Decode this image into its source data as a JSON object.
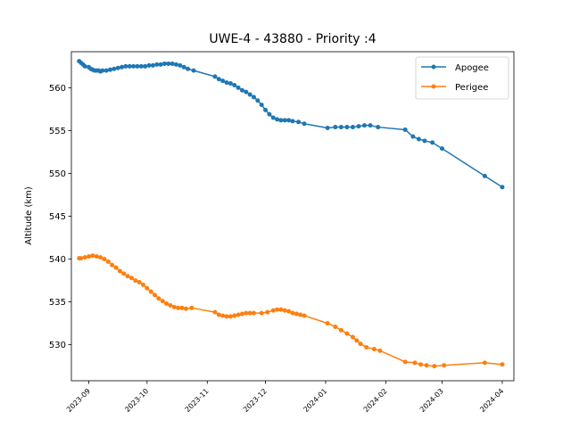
{
  "chart_data": {
    "type": "line",
    "title": "UWE-4 - 43880 - Priority :4",
    "xlabel": "",
    "ylabel": "Altitude (km)",
    "x_ticks": [
      "2023-09",
      "2023-10",
      "2023-11",
      "2023-12",
      "2024-01",
      "2024-02",
      "2024-03",
      "2024-04"
    ],
    "y_ticks": [
      530,
      535,
      540,
      545,
      550,
      555,
      560
    ],
    "ylim": [
      525.8,
      564.2
    ],
    "xlim": [
      "2023-08-23",
      "2024-04-07"
    ],
    "legend_position": "upper right",
    "grid": false,
    "series": [
      {
        "name": "Apogee",
        "color": "#1f77b4",
        "marker": "circle",
        "points": [
          [
            "2023-08-27",
            563.1
          ],
          [
            "2023-08-28",
            562.9
          ],
          [
            "2023-08-29",
            562.7
          ],
          [
            "2023-08-30",
            562.5
          ],
          [
            "2023-09-01",
            562.4
          ],
          [
            "2023-09-02",
            562.2
          ],
          [
            "2023-09-03",
            562.1
          ],
          [
            "2023-09-04",
            562.0
          ],
          [
            "2023-09-05",
            562.0
          ],
          [
            "2023-09-06",
            562.0
          ],
          [
            "2023-09-07",
            561.9
          ],
          [
            "2023-09-08",
            562.0
          ],
          [
            "2023-09-10",
            562.0
          ],
          [
            "2023-09-12",
            562.1
          ],
          [
            "2023-09-14",
            562.2
          ],
          [
            "2023-09-16",
            562.3
          ],
          [
            "2023-09-18",
            562.4
          ],
          [
            "2023-09-20",
            562.5
          ],
          [
            "2023-09-22",
            562.5
          ],
          [
            "2023-09-24",
            562.5
          ],
          [
            "2023-09-26",
            562.5
          ],
          [
            "2023-09-28",
            562.5
          ],
          [
            "2023-09-30",
            562.5
          ],
          [
            "2023-10-02",
            562.6
          ],
          [
            "2023-10-04",
            562.6
          ],
          [
            "2023-10-06",
            562.7
          ],
          [
            "2023-10-08",
            562.7
          ],
          [
            "2023-10-10",
            562.8
          ],
          [
            "2023-10-12",
            562.8
          ],
          [
            "2023-10-14",
            562.8
          ],
          [
            "2023-10-16",
            562.7
          ],
          [
            "2023-10-18",
            562.6
          ],
          [
            "2023-10-20",
            562.4
          ],
          [
            "2023-10-22",
            562.2
          ],
          [
            "2023-10-25",
            562.0
          ],
          [
            "2023-11-05",
            561.3
          ],
          [
            "2023-11-07",
            561.0
          ],
          [
            "2023-11-09",
            560.8
          ],
          [
            "2023-11-11",
            560.6
          ],
          [
            "2023-11-13",
            560.5
          ],
          [
            "2023-11-15",
            560.3
          ],
          [
            "2023-11-17",
            560.0
          ],
          [
            "2023-11-19",
            559.7
          ],
          [
            "2023-11-21",
            559.5
          ],
          [
            "2023-11-23",
            559.2
          ],
          [
            "2023-11-25",
            558.9
          ],
          [
            "2023-11-27",
            558.5
          ],
          [
            "2023-11-29",
            558.0
          ],
          [
            "2023-12-01",
            557.4
          ],
          [
            "2023-12-03",
            556.9
          ],
          [
            "2023-12-05",
            556.5
          ],
          [
            "2023-12-07",
            556.3
          ],
          [
            "2023-12-09",
            556.2
          ],
          [
            "2023-12-11",
            556.2
          ],
          [
            "2023-12-13",
            556.2
          ],
          [
            "2023-12-15",
            556.1
          ],
          [
            "2023-12-18",
            556.0
          ],
          [
            "2023-12-21",
            555.8
          ],
          [
            "2024-01-02",
            555.3
          ],
          [
            "2024-01-06",
            555.4
          ],
          [
            "2024-01-09",
            555.4
          ],
          [
            "2024-01-12",
            555.4
          ],
          [
            "2024-01-15",
            555.4
          ],
          [
            "2024-01-18",
            555.5
          ],
          [
            "2024-01-21",
            555.6
          ],
          [
            "2024-01-24",
            555.6
          ],
          [
            "2024-01-28",
            555.4
          ],
          [
            "2024-02-11",
            555.1
          ],
          [
            "2024-02-15",
            554.3
          ],
          [
            "2024-02-18",
            554.0
          ],
          [
            "2024-02-21",
            553.8
          ],
          [
            "2024-02-25",
            553.6
          ],
          [
            "2024-03-01",
            552.9
          ],
          [
            "2024-03-23",
            549.7
          ],
          [
            "2024-04-01",
            548.4
          ]
        ]
      },
      {
        "name": "Perigee",
        "color": "#ff7f0e",
        "marker": "circle",
        "points": [
          [
            "2023-08-27",
            540.1
          ],
          [
            "2023-08-28",
            540.1
          ],
          [
            "2023-08-30",
            540.2
          ],
          [
            "2023-09-01",
            540.3
          ],
          [
            "2023-09-03",
            540.4
          ],
          [
            "2023-09-05",
            540.3
          ],
          [
            "2023-09-07",
            540.2
          ],
          [
            "2023-09-09",
            540.0
          ],
          [
            "2023-09-11",
            539.7
          ],
          [
            "2023-09-13",
            539.3
          ],
          [
            "2023-09-15",
            539.0
          ],
          [
            "2023-09-17",
            538.6
          ],
          [
            "2023-09-19",
            538.3
          ],
          [
            "2023-09-21",
            538.0
          ],
          [
            "2023-09-23",
            537.8
          ],
          [
            "2023-09-25",
            537.5
          ],
          [
            "2023-09-27",
            537.3
          ],
          [
            "2023-09-29",
            537.0
          ],
          [
            "2023-10-01",
            536.6
          ],
          [
            "2023-10-03",
            536.2
          ],
          [
            "2023-10-05",
            535.8
          ],
          [
            "2023-10-07",
            535.4
          ],
          [
            "2023-10-09",
            535.1
          ],
          [
            "2023-10-11",
            534.8
          ],
          [
            "2023-10-13",
            534.6
          ],
          [
            "2023-10-15",
            534.4
          ],
          [
            "2023-10-17",
            534.3
          ],
          [
            "2023-10-19",
            534.3
          ],
          [
            "2023-10-21",
            534.2
          ],
          [
            "2023-10-24",
            534.3
          ],
          [
            "2023-11-05",
            533.8
          ],
          [
            "2023-11-07",
            533.5
          ],
          [
            "2023-11-09",
            533.4
          ],
          [
            "2023-11-11",
            533.3
          ],
          [
            "2023-11-13",
            533.3
          ],
          [
            "2023-11-15",
            533.4
          ],
          [
            "2023-11-17",
            533.5
          ],
          [
            "2023-11-19",
            533.6
          ],
          [
            "2023-11-21",
            533.7
          ],
          [
            "2023-11-23",
            533.7
          ],
          [
            "2023-11-25",
            533.7
          ],
          [
            "2023-11-29",
            533.7
          ],
          [
            "2023-12-02",
            533.8
          ],
          [
            "2023-12-05",
            534.0
          ],
          [
            "2023-12-07",
            534.1
          ],
          [
            "2023-12-09",
            534.1
          ],
          [
            "2023-12-11",
            534.0
          ],
          [
            "2023-12-13",
            533.9
          ],
          [
            "2023-12-15",
            533.7
          ],
          [
            "2023-12-17",
            533.6
          ],
          [
            "2023-12-19",
            533.5
          ],
          [
            "2023-12-21",
            533.4
          ],
          [
            "2024-01-02",
            532.5
          ],
          [
            "2024-01-06",
            532.1
          ],
          [
            "2024-01-09",
            531.7
          ],
          [
            "2024-01-12",
            531.3
          ],
          [
            "2024-01-15",
            530.9
          ],
          [
            "2024-01-17",
            530.5
          ],
          [
            "2024-01-19",
            530.1
          ],
          [
            "2024-01-22",
            529.7
          ],
          [
            "2024-01-26",
            529.5
          ],
          [
            "2024-01-29",
            529.3
          ],
          [
            "2024-02-11",
            528.0
          ],
          [
            "2024-02-16",
            527.9
          ],
          [
            "2024-02-19",
            527.7
          ],
          [
            "2024-02-22",
            527.6
          ],
          [
            "2024-02-26",
            527.5
          ],
          [
            "2024-03-02",
            527.6
          ],
          [
            "2024-03-23",
            527.9
          ],
          [
            "2024-04-01",
            527.7
          ]
        ]
      }
    ]
  }
}
